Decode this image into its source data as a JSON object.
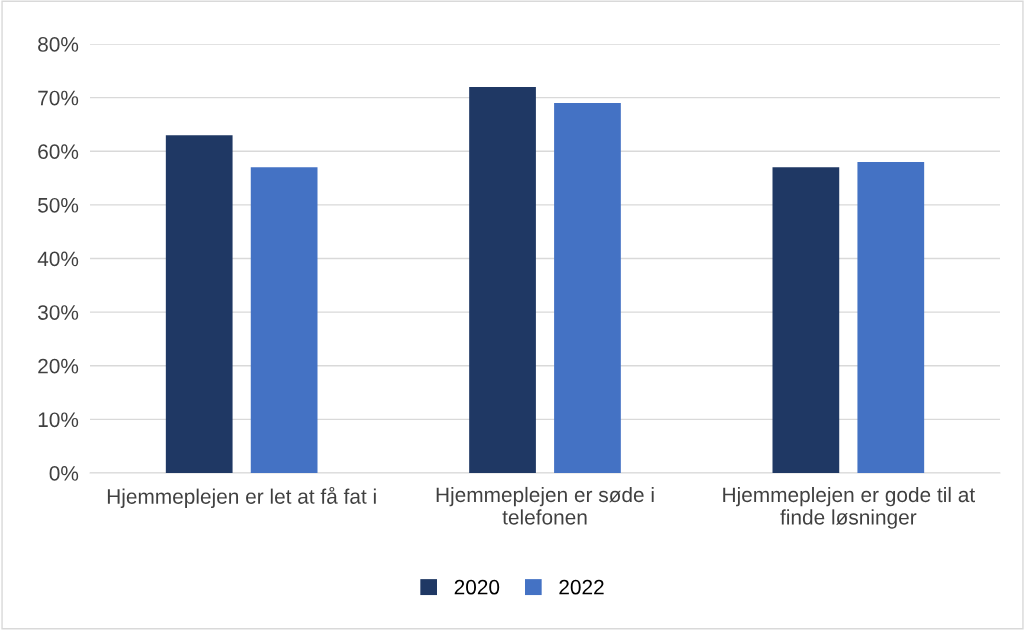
{
  "chart_data": {
    "type": "bar",
    "categories": [
      "Hjemmeplejen er let at få fat i",
      "Hjemmeplejen er søde i telefonen",
      "Hjemmeplejen er gode til at finde løsninger"
    ],
    "series": [
      {
        "name": "2020",
        "color": "#1f3864",
        "values": [
          63,
          72,
          57
        ]
      },
      {
        "name": "2022",
        "color": "#4472c4",
        "values": [
          57,
          69,
          58
        ]
      }
    ],
    "ylim": [
      0,
      80
    ],
    "yticks": [
      {
        "value": 0,
        "label": "0%"
      },
      {
        "value": 10,
        "label": "10%"
      },
      {
        "value": 20,
        "label": "20%"
      },
      {
        "value": 30,
        "label": "30%"
      },
      {
        "value": 40,
        "label": "40%"
      },
      {
        "value": 50,
        "label": "50%"
      },
      {
        "value": 60,
        "label": "60%"
      },
      {
        "value": 70,
        "label": "70%"
      },
      {
        "value": 80,
        "label": "80%"
      }
    ],
    "grid": "y",
    "legend": "bottom"
  }
}
